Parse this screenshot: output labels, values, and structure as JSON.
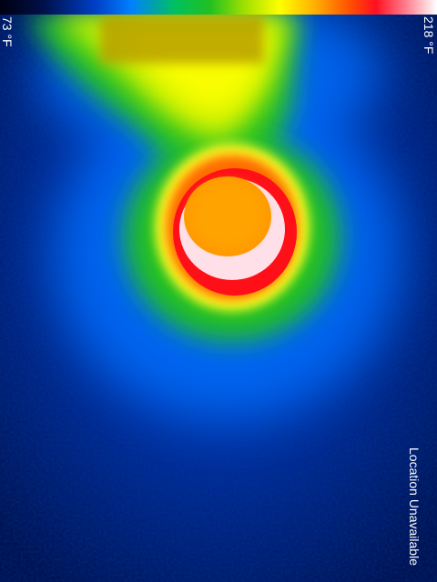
{
  "palette": {
    "min_temperature": "73 °F",
    "max_temperature": "218 °F"
  },
  "status": {
    "location": "Location Unavailable"
  },
  "colors": {
    "cold": "#001a8c",
    "cool": "#0050e0",
    "mid": "#20c020",
    "warm": "#ffff00",
    "hot": "#ff1020",
    "hottest": "#ffffff"
  }
}
